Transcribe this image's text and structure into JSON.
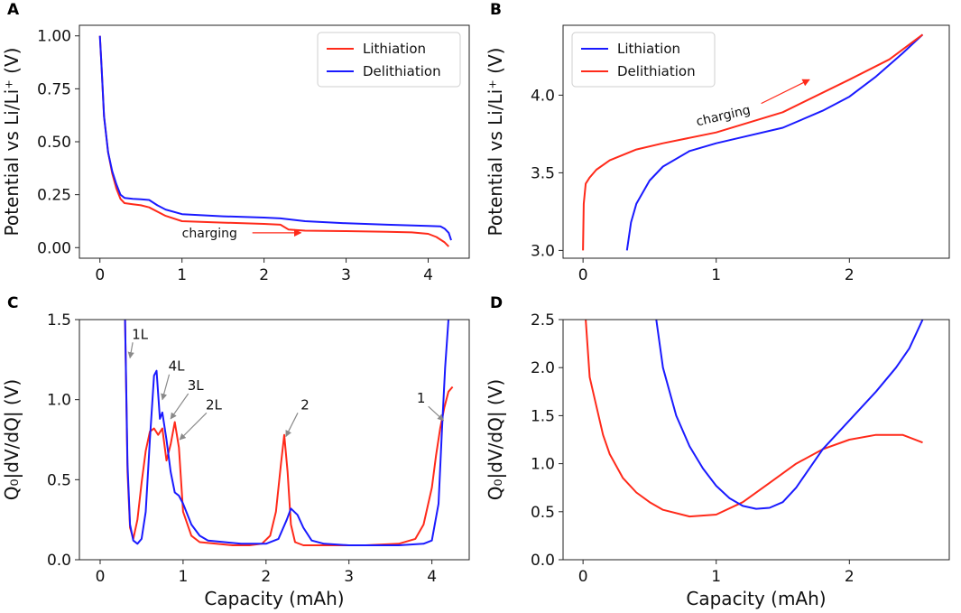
{
  "chart_data": [
    {
      "panel": "A",
      "type": "line",
      "xlim": [
        -0.25,
        4.5
      ],
      "ylim": [
        -0.05,
        1.05
      ],
      "xticks": [
        "0",
        "1",
        "2",
        "3",
        "4"
      ],
      "yticks": [
        "0.00",
        "0.25",
        "0.50",
        "0.75",
        "1.00"
      ],
      "xlabel": "",
      "ylabel": "Potential vs Li/Li⁺ (V)",
      "legend_position": "top-right",
      "annotations": [
        {
          "text": "charging",
          "color": "#ff2a1a",
          "x": 1.0,
          "y": 0.07,
          "arrow_to_x": 2.45
        }
      ],
      "series": [
        {
          "name": "Lithiation",
          "color": "#ff2a1a",
          "x": [
            0,
            0.02,
            0.05,
            0.1,
            0.15,
            0.2,
            0.25,
            0.3,
            0.4,
            0.5,
            0.6,
            0.8,
            1.0,
            1.5,
            2.0,
            2.2,
            2.3,
            2.5,
            3.0,
            3.5,
            3.8,
            4.0,
            4.1,
            4.2,
            4.25
          ],
          "y": [
            1.0,
            0.85,
            0.62,
            0.45,
            0.35,
            0.28,
            0.23,
            0.21,
            0.205,
            0.2,
            0.19,
            0.15,
            0.125,
            0.118,
            0.112,
            0.108,
            0.085,
            0.08,
            0.078,
            0.075,
            0.072,
            0.065,
            0.05,
            0.025,
            0.005
          ]
        },
        {
          "name": "Delithiation",
          "color": "#1a1aff",
          "x": [
            0,
            0.02,
            0.05,
            0.1,
            0.15,
            0.2,
            0.25,
            0.3,
            0.4,
            0.5,
            0.6,
            0.7,
            0.8,
            1.0,
            1.5,
            2.0,
            2.2,
            2.5,
            3.0,
            3.5,
            4.0,
            4.15,
            4.2,
            4.25,
            4.28
          ],
          "y": [
            1.0,
            0.85,
            0.62,
            0.45,
            0.36,
            0.3,
            0.25,
            0.235,
            0.23,
            0.228,
            0.225,
            0.2,
            0.18,
            0.158,
            0.148,
            0.142,
            0.138,
            0.125,
            0.115,
            0.108,
            0.102,
            0.1,
            0.09,
            0.07,
            0.035
          ]
        }
      ]
    },
    {
      "panel": "B",
      "type": "line",
      "xlim": [
        -0.15,
        2.75
      ],
      "ylim": [
        2.95,
        4.45
      ],
      "xticks": [
        "0",
        "1",
        "2"
      ],
      "yticks": [
        "3.0",
        "3.5",
        "4.0"
      ],
      "xlabel": "",
      "ylabel": "Potential vs Li/Li⁺ (V)",
      "legend_position": "top-left",
      "annotations": [
        {
          "text": "charging",
          "color": "#ff2a1a",
          "x": 0.85,
          "y": 3.83,
          "arrow_to_x": 1.7
        }
      ],
      "series": [
        {
          "name": "Lithiation",
          "color": "#1a1aff",
          "x": [
            0.33,
            0.36,
            0.4,
            0.5,
            0.6,
            0.8,
            1.0,
            1.2,
            1.5,
            1.8,
            2.0,
            2.2,
            2.4,
            2.55
          ],
          "y": [
            3.0,
            3.18,
            3.3,
            3.45,
            3.54,
            3.64,
            3.69,
            3.73,
            3.79,
            3.9,
            3.99,
            4.12,
            4.27,
            4.39
          ]
        },
        {
          "name": "Delithiation",
          "color": "#ff2a1a",
          "x": [
            0.0,
            0.005,
            0.02,
            0.05,
            0.1,
            0.2,
            0.4,
            0.6,
            1.0,
            1.5,
            2.0,
            2.3,
            2.55
          ],
          "y": [
            3.0,
            3.3,
            3.43,
            3.47,
            3.52,
            3.58,
            3.65,
            3.69,
            3.76,
            3.89,
            4.1,
            4.23,
            4.39
          ]
        }
      ]
    },
    {
      "panel": "C",
      "type": "line",
      "xlim": [
        -0.25,
        4.45
      ],
      "ylim": [
        0,
        1.5
      ],
      "xticks": [
        "0",
        "1",
        "2",
        "3",
        "4"
      ],
      "yticks": [
        "0.0",
        "0.5",
        "1.0",
        "1.5"
      ],
      "xlabel": "Capacity (mAh)",
      "ylabel": "Q₀|dV/dQ| (V)",
      "annotations": [
        {
          "text": "1L",
          "x": 0.48,
          "y": 1.38,
          "arrow_to_x": 0.36,
          "arrow_to_y": 1.26
        },
        {
          "text": "4L",
          "x": 0.92,
          "y": 1.18,
          "arrow_to_x": 0.75,
          "arrow_to_y": 1.0
        },
        {
          "text": "3L",
          "x": 1.15,
          "y": 1.06,
          "arrow_to_x": 0.85,
          "arrow_to_y": 0.88
        },
        {
          "text": "2L",
          "x": 1.37,
          "y": 0.94,
          "arrow_to_x": 0.96,
          "arrow_to_y": 0.75
        },
        {
          "text": "2",
          "x": 2.47,
          "y": 0.94,
          "arrow_to_x": 2.24,
          "arrow_to_y": 0.77
        },
        {
          "text": "1",
          "x": 3.87,
          "y": 0.98,
          "arrow_to_x": 4.14,
          "arrow_to_y": 0.87
        }
      ],
      "series": [
        {
          "name": "Lithiation",
          "color": "#ff2a1a",
          "x": [
            0.3,
            0.33,
            0.36,
            0.4,
            0.45,
            0.5,
            0.55,
            0.6,
            0.65,
            0.7,
            0.75,
            0.8,
            0.85,
            0.9,
            0.95,
            1.0,
            1.1,
            1.2,
            1.4,
            1.6,
            1.8,
            1.95,
            2.05,
            2.12,
            2.18,
            2.22,
            2.26,
            2.3,
            2.35,
            2.45,
            2.8,
            3.2,
            3.6,
            3.8,
            3.9,
            4.0,
            4.05,
            4.1,
            4.15,
            4.2,
            4.25
          ],
          "y": [
            1.5,
            0.55,
            0.2,
            0.13,
            0.25,
            0.48,
            0.68,
            0.8,
            0.82,
            0.78,
            0.82,
            0.62,
            0.72,
            0.86,
            0.7,
            0.3,
            0.15,
            0.11,
            0.1,
            0.09,
            0.09,
            0.1,
            0.15,
            0.3,
            0.6,
            0.78,
            0.55,
            0.22,
            0.11,
            0.09,
            0.09,
            0.09,
            0.1,
            0.13,
            0.22,
            0.45,
            0.65,
            0.82,
            0.95,
            1.05,
            1.08
          ]
        },
        {
          "name": "Delithiation",
          "color": "#1a1aff",
          "x": [
            0.3,
            0.33,
            0.36,
            0.4,
            0.45,
            0.5,
            0.55,
            0.6,
            0.65,
            0.68,
            0.72,
            0.75,
            0.8,
            0.85,
            0.9,
            0.95,
            1.0,
            1.1,
            1.2,
            1.3,
            1.5,
            1.7,
            2.0,
            2.15,
            2.25,
            2.3,
            2.38,
            2.45,
            2.55,
            2.7,
            3.0,
            3.3,
            3.6,
            3.9,
            4.0,
            4.08,
            4.12,
            4.16,
            4.2
          ],
          "y": [
            1.5,
            0.6,
            0.22,
            0.12,
            0.1,
            0.13,
            0.3,
            0.75,
            1.15,
            1.18,
            0.88,
            0.92,
            0.75,
            0.55,
            0.42,
            0.4,
            0.35,
            0.22,
            0.15,
            0.12,
            0.11,
            0.1,
            0.1,
            0.13,
            0.25,
            0.32,
            0.28,
            0.2,
            0.12,
            0.1,
            0.09,
            0.09,
            0.09,
            0.1,
            0.12,
            0.35,
            0.8,
            1.2,
            1.5
          ]
        }
      ]
    },
    {
      "panel": "D",
      "type": "line",
      "xlim": [
        -0.15,
        2.75
      ],
      "ylim": [
        0,
        2.5
      ],
      "xticks": [
        "0",
        "1",
        "2"
      ],
      "yticks": [
        "0.0",
        "0.5",
        "1.0",
        "1.5",
        "2.0",
        "2.5"
      ],
      "xlabel": "Capacity (mAh)",
      "ylabel": "Q₀|dV/dQ| (V)",
      "series": [
        {
          "name": "Delithiation",
          "color": "#ff2a1a",
          "x": [
            0.02,
            0.05,
            0.1,
            0.15,
            0.2,
            0.3,
            0.4,
            0.5,
            0.6,
            0.8,
            1.0,
            1.2,
            1.4,
            1.6,
            1.8,
            2.0,
            2.2,
            2.4,
            2.55
          ],
          "y": [
            2.5,
            1.9,
            1.6,
            1.3,
            1.1,
            0.85,
            0.7,
            0.6,
            0.52,
            0.45,
            0.47,
            0.6,
            0.8,
            1.0,
            1.15,
            1.25,
            1.3,
            1.3,
            1.22
          ]
        },
        {
          "name": "Lithiation",
          "color": "#1a1aff",
          "x": [
            0.55,
            0.6,
            0.7,
            0.8,
            0.9,
            1.0,
            1.1,
            1.2,
            1.3,
            1.4,
            1.5,
            1.6,
            1.7,
            1.8,
            2.0,
            2.2,
            2.35,
            2.45,
            2.55
          ],
          "y": [
            2.5,
            2.0,
            1.5,
            1.18,
            0.95,
            0.77,
            0.64,
            0.56,
            0.53,
            0.54,
            0.6,
            0.75,
            0.95,
            1.15,
            1.45,
            1.75,
            2.0,
            2.2,
            2.5
          ]
        }
      ]
    }
  ]
}
